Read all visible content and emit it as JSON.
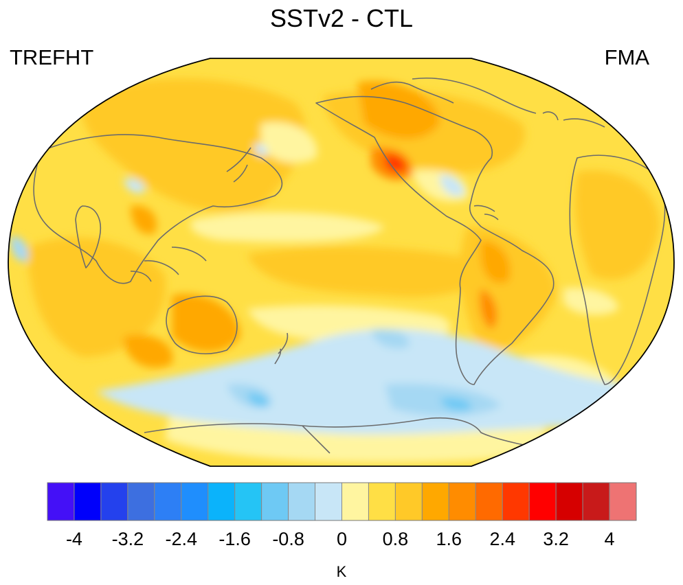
{
  "title": "SSTv2 - CTL",
  "variable": "TREFHT",
  "season": "FMA",
  "colorbar": {
    "units": "K",
    "colors": [
      "#4410f7",
      "#0000fb",
      "#2441ed",
      "#3d6fe0",
      "#2d7ff5",
      "#1f8efd",
      "#0bb3fb",
      "#25c4f5",
      "#6ec9f4",
      "#a5d8f3",
      "#c8e6f7",
      "#fff5a0",
      "#ffdf45",
      "#ffc928",
      "#ffa800",
      "#ff8c00",
      "#ff6a00",
      "#ff3800",
      "#ff0000",
      "#d60000",
      "#c81a1a",
      "#ee7373"
    ],
    "tick_labels": [
      "-4",
      "-3.2",
      "-2.4",
      "-1.6",
      "-0.8",
      "0",
      "0.8",
      "1.6",
      "2.4",
      "3.2",
      "4"
    ],
    "tick_values": [
      -4,
      -3.2,
      -2.4,
      -1.6,
      -0.8,
      0,
      0.8,
      1.6,
      2.4,
      3.2,
      4
    ]
  }
}
